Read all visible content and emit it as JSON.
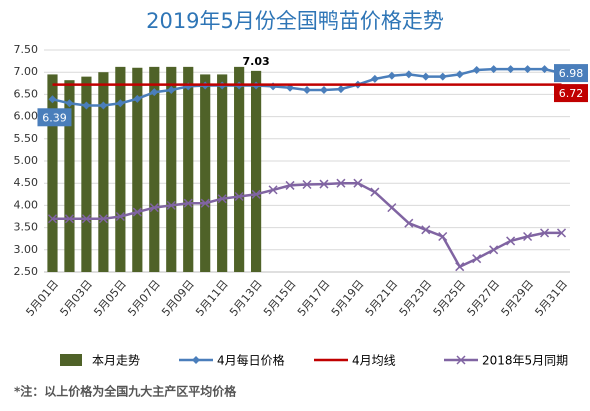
{
  "chart_data": {
    "type": "bar",
    "title": "2019年5月份全国鸭苗价格走势",
    "note": "*注：以上价格为全国九大主产区平均价格",
    "categories": [
      "5月01日",
      null,
      "5月03日",
      null,
      "5月05日",
      null,
      "5月07日",
      null,
      "5月09日",
      null,
      "5月11日",
      null,
      "5月13日",
      null,
      "5月15日",
      null,
      "5月17日",
      null,
      "5月19日",
      null,
      "5月21日",
      null,
      "5月23日",
      null,
      "5月25日",
      null,
      "5月27日",
      null,
      "5月29日",
      null,
      "5月31日"
    ],
    "ylim": [
      2.5,
      7.5
    ],
    "yticks": [
      {
        "value": 2.5,
        "label": "2.50"
      },
      {
        "value": 3,
        "label": "3.00"
      },
      {
        "value": 3.5,
        "label": "3.50"
      },
      {
        "value": 4,
        "label": "4.00"
      },
      {
        "value": 4.5,
        "label": "4.50"
      },
      {
        "value": 5,
        "label": "5.00"
      },
      {
        "value": 5.5,
        "label": "5.50"
      },
      {
        "value": 6,
        "label": "6.00"
      },
      {
        "value": 6.5,
        "label": "6.50"
      },
      {
        "value": 7,
        "label": "7.00"
      },
      {
        "value": 7.5,
        "label": "7.50"
      }
    ],
    "grid": true,
    "legend": "bottom",
    "series": [
      {
        "name": "本月走势",
        "type": "bar",
        "color": "#4f6228",
        "values": [
          6.95,
          6.82,
          6.9,
          7.0,
          7.12,
          7.1,
          7.12,
          7.12,
          7.12,
          6.95,
          6.95,
          7.12,
          7.03,
          null,
          null,
          null,
          null,
          null,
          null,
          null,
          null,
          null,
          null,
          null,
          null,
          null,
          null,
          null,
          null,
          null,
          null
        ],
        "value_labels": [
          null,
          null,
          null,
          null,
          null,
          null,
          null,
          null,
          null,
          null,
          null,
          null,
          "7.03",
          null,
          null,
          null,
          null,
          null,
          null,
          null,
          null,
          null,
          null,
          null,
          null,
          null,
          null,
          null,
          null,
          null,
          null
        ]
      },
      {
        "name": "4月每日价格",
        "type": "line",
        "marker": "diamond",
        "color": "#4a7ebb",
        "values": [
          6.39,
          6.3,
          6.25,
          6.25,
          6.3,
          6.4,
          6.55,
          6.6,
          6.68,
          6.7,
          6.7,
          6.7,
          6.7,
          6.68,
          6.65,
          6.6,
          6.6,
          6.62,
          6.72,
          6.85,
          6.92,
          6.95,
          6.9,
          6.9,
          6.95,
          7.05,
          7.07,
          7.07,
          7.07,
          7.07,
          6.98
        ],
        "value_labels": [
          "6.39",
          null,
          null,
          null,
          null,
          null,
          null,
          null,
          null,
          null,
          null,
          null,
          null,
          null,
          null,
          null,
          null,
          null,
          null,
          null,
          null,
          null,
          null,
          null,
          null,
          null,
          null,
          null,
          null,
          null,
          "6.98"
        ]
      },
      {
        "name": "4月均线",
        "type": "line",
        "color": "#c00000",
        "values": [
          6.72,
          6.72,
          6.72,
          6.72,
          6.72,
          6.72,
          6.72,
          6.72,
          6.72,
          6.72,
          6.72,
          6.72,
          6.72,
          6.72,
          6.72,
          6.72,
          6.72,
          6.72,
          6.72,
          6.72,
          6.72,
          6.72,
          6.72,
          6.72,
          6.72,
          6.72,
          6.72,
          6.72,
          6.72,
          6.72,
          6.72
        ],
        "value_labels": [
          null,
          null,
          null,
          null,
          null,
          null,
          null,
          null,
          null,
          null,
          null,
          null,
          null,
          null,
          null,
          null,
          null,
          null,
          null,
          null,
          null,
          null,
          null,
          null,
          null,
          null,
          null,
          null,
          null,
          null,
          "6.72"
        ]
      },
      {
        "name": "2018年5月同期",
        "type": "line",
        "marker": "x",
        "color": "#8064a2",
        "values": [
          3.7,
          3.7,
          3.7,
          3.7,
          3.75,
          3.85,
          3.95,
          4.0,
          4.05,
          4.05,
          4.15,
          4.2,
          4.25,
          4.35,
          4.45,
          4.47,
          4.48,
          4.5,
          4.5,
          4.3,
          3.95,
          3.6,
          3.45,
          3.3,
          2.62,
          2.8,
          3.0,
          3.2,
          3.3,
          3.38,
          3.38
        ]
      }
    ]
  }
}
